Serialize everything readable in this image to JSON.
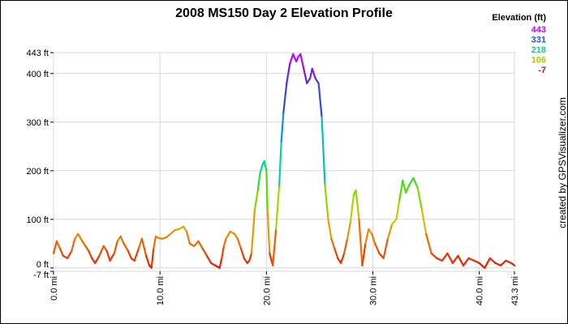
{
  "chart_data": {
    "type": "line",
    "title": "2008 MS150 Day 2 Elevation Profile",
    "credit": "created by GPSVisualizer.com",
    "xlabel": "",
    "ylabel": "",
    "x_unit": "mi",
    "y_unit": "ft",
    "xlim": [
      0,
      43.3
    ],
    "ylim": [
      -7,
      443
    ],
    "grid": true,
    "x_ticks": [
      {
        "value": 0,
        "label": "0.0 mi"
      },
      {
        "value": 10,
        "label": "10.0 mi"
      },
      {
        "value": 20,
        "label": "20.0 mi"
      },
      {
        "value": 30,
        "label": "30.0 mi"
      },
      {
        "value": 40,
        "label": "40.0 mi"
      },
      {
        "value": 43.3,
        "label": "43.3 mi"
      }
    ],
    "y_ticks": [
      {
        "value": -7,
        "label": "-7 ft"
      },
      {
        "value": 0,
        "label": "0 ft"
      },
      {
        "value": 100,
        "label": "100 ft"
      },
      {
        "value": 200,
        "label": "200 ft"
      },
      {
        "value": 300,
        "label": "300 ft"
      },
      {
        "value": 400,
        "label": "400 ft"
      },
      {
        "value": 443,
        "label": "443 ft"
      }
    ],
    "legend": {
      "title": "Elevation (ft)",
      "position": "top-right",
      "entries": [
        {
          "label": "443",
          "color": "#cc00ff"
        },
        {
          "label": "331",
          "color": "#2255ee"
        },
        {
          "label": "218",
          "color": "#22cc88"
        },
        {
          "label": "106",
          "color": "#aacc00"
        },
        {
          "label": "-7",
          "color": "#ee0000"
        }
      ]
    },
    "color_scale": [
      {
        "value": -7,
        "color": "#e60000"
      },
      {
        "value": 50,
        "color": "#f06a00"
      },
      {
        "value": 106,
        "color": "#d9d000"
      },
      {
        "value": 160,
        "color": "#55dd00"
      },
      {
        "value": 218,
        "color": "#00d3a0"
      },
      {
        "value": 275,
        "color": "#00aadd"
      },
      {
        "value": 331,
        "color": "#2255ee"
      },
      {
        "value": 390,
        "color": "#6622dd"
      },
      {
        "value": 443,
        "color": "#cc00ff"
      }
    ],
    "series": [
      {
        "x": [
          0,
          0.3,
          0.6,
          0.9,
          1.3,
          1.7,
          2.0,
          2.3,
          2.7,
          3.0,
          3.3,
          3.6,
          3.9,
          4.3,
          4.7,
          5.0,
          5.3,
          5.7,
          6.0,
          6.3,
          6.6,
          7.0,
          7.3,
          7.6,
          8.0,
          8.3,
          8.7,
          9.0,
          9.2,
          9.4,
          9.6,
          9.8,
          10.2,
          10.6,
          11.0,
          11.4,
          11.8,
          12.2,
          12.5,
          12.8,
          13.2,
          13.6,
          14.0,
          14.4,
          14.8,
          15.2,
          15.6,
          15.8,
          16.0,
          16.2,
          16.6,
          17.0,
          17.3,
          17.6,
          17.9,
          18.2,
          18.4,
          18.6,
          18.9,
          19.2,
          19.4,
          19.6,
          19.8,
          20.0,
          20.1,
          20.3,
          20.6,
          20.9,
          21.2,
          21.4,
          21.6,
          21.9,
          22.2,
          22.5,
          22.8,
          23.0,
          23.2,
          23.5,
          23.8,
          24.1,
          24.3,
          24.6,
          24.9,
          25.2,
          25.5,
          25.8,
          26.1,
          26.4,
          26.7,
          27.0,
          27.3,
          27.6,
          27.9,
          28.2,
          28.4,
          28.7,
          29.0,
          29.3,
          29.6,
          29.9,
          30.2,
          30.6,
          31.0,
          31.4,
          31.8,
          32.2,
          32.5,
          32.8,
          33.1,
          33.4,
          33.8,
          34.2,
          34.6,
          35.0,
          35.5,
          36.0,
          36.5,
          37.0,
          37.5,
          38.0,
          38.5,
          39.0,
          39.5,
          40.0,
          40.5,
          41.0,
          41.5,
          42.0,
          42.5,
          43.0,
          43.3
        ],
        "y": [
          30,
          55,
          40,
          25,
          20,
          35,
          60,
          70,
          55,
          45,
          35,
          20,
          10,
          25,
          45,
          35,
          15,
          30,
          55,
          65,
          50,
          35,
          20,
          15,
          40,
          60,
          25,
          5,
          0,
          40,
          65,
          62,
          60,
          63,
          70,
          78,
          80,
          85,
          75,
          50,
          45,
          55,
          40,
          25,
          10,
          5,
          0,
          20,
          45,
          60,
          75,
          70,
          60,
          40,
          20,
          10,
          15,
          30,
          120,
          160,
          195,
          210,
          220,
          200,
          120,
          30,
          5,
          80,
          170,
          260,
          320,
          380,
          420,
          440,
          425,
          435,
          440,
          410,
          380,
          390,
          410,
          390,
          380,
          310,
          170,
          100,
          60,
          40,
          20,
          10,
          30,
          60,
          95,
          150,
          160,
          100,
          5,
          50,
          80,
          70,
          50,
          30,
          20,
          60,
          90,
          100,
          140,
          180,
          155,
          170,
          185,
          165,
          120,
          70,
          30,
          20,
          15,
          30,
          10,
          25,
          5,
          20,
          15,
          10,
          0,
          20,
          10,
          5,
          15,
          10,
          5
        ]
      }
    ]
  }
}
